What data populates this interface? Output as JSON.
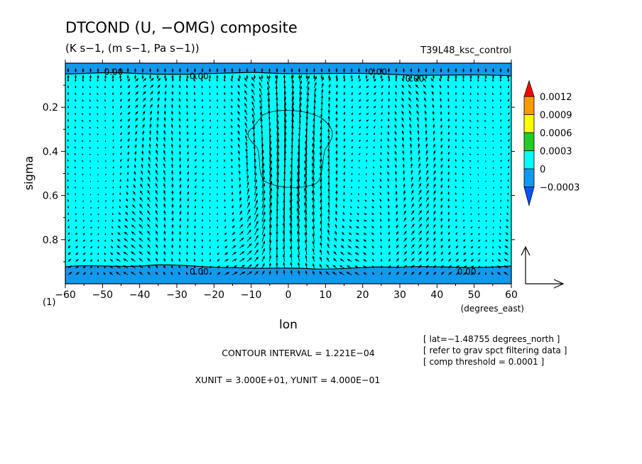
{
  "chart_data": {
    "type": "contour-vector",
    "title": "DTCOND (U, −OMG) composite",
    "subtitle": "(K s−1, (m s−1, Pa s−1))",
    "run_label": "T39L48_ksc_control",
    "xlabel": "lon",
    "xunit_label": "(degrees_east)",
    "ylabel": "sigma",
    "y_corner_label": "(1)",
    "xlim": [
      -60,
      60
    ],
    "ylim": [
      1.0,
      0.0
    ],
    "x_ticks": [
      -60,
      -50,
      -40,
      -30,
      -20,
      -10,
      0,
      10,
      20,
      30,
      40,
      50,
      60
    ],
    "x_tick_labels": [
      "−60",
      "−50",
      "−40",
      "−30",
      "−20",
      "−10",
      "0",
      "10",
      "20",
      "30",
      "40",
      "50",
      "60"
    ],
    "y_ticks": [
      0.2,
      0.4,
      0.6,
      0.8
    ],
    "y_tick_labels": [
      "0.2",
      "0.4",
      "0.6",
      "0.8"
    ],
    "contour_labels": [
      {
        "text": "0.00",
        "x": -47,
        "y": 0.04
      },
      {
        "text": "0.00",
        "x": -24,
        "y": 0.06
      },
      {
        "text": "0.00",
        "x": 24,
        "y": 0.04
      },
      {
        "text": "0.00",
        "x": 34,
        "y": 0.07
      },
      {
        "text": "0.00",
        "x": -24,
        "y": 0.945
      },
      {
        "text": "0.00",
        "x": 48,
        "y": 0.945
      }
    ],
    "colorbar": {
      "levels": [
        "0.0012",
        "0.0009",
        "0.0006",
        "0.0003",
        "0",
        "−0.0003"
      ],
      "colors": [
        "#ff0000",
        "#ff9900",
        "#ffff00",
        "#22cc22",
        "#00ffff",
        "#1199ee",
        "#0055ff"
      ]
    },
    "fill_regions": {
      "interior": "#00ffff",
      "top_band": "#1199ee",
      "bottom_band": "#1199ee"
    },
    "vector_reference": {
      "xunit": 30,
      "yunit": 0.4
    },
    "info_lines": [
      "[ lat=−1.48755 degrees_north ]",
      "[ refer to grav spct filtering data ]",
      "[ comp threshold = 0.0001 ]"
    ],
    "contour_interval_text": "CONTOUR INTERVAL = 1.221E−04",
    "unit_text": "XUNIT = 3.000E+01, YUNIT = 4.000E−01"
  }
}
